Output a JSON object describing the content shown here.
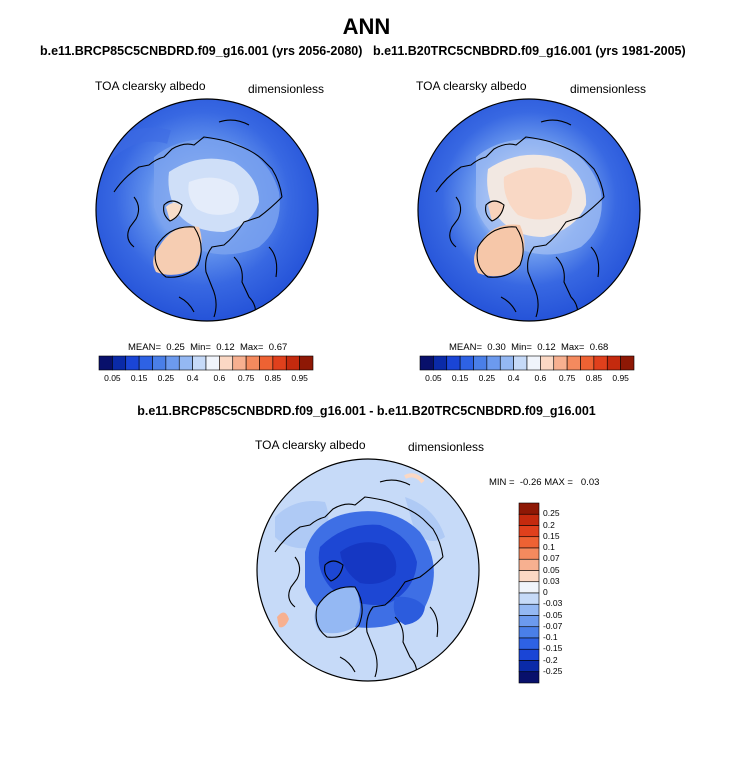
{
  "title": "ANN",
  "panels": [
    {
      "case_title": "b.e11.BRCP85C5CNBDRD.f09_g16.001 (yrs 2056-2080)",
      "variable": "TOA clearsky albedo",
      "units": "dimensionless",
      "stats": {
        "mean_label": "MEAN=",
        "mean": "0.25",
        "min_label": "Min=",
        "min": "0.12",
        "max_label": "Max=",
        "max": "0.67"
      }
    },
    {
      "case_title": "b.e11.B20TRC5CNBDRD.f09_g16.001 (yrs 1981-2005)",
      "variable": "TOA clearsky albedo",
      "units": "dimensionless",
      "stats": {
        "mean_label": "MEAN=",
        "mean": "0.30",
        "min_label": "Min=",
        "min": "0.12",
        "max_label": "Max=",
        "max": "0.68"
      }
    }
  ],
  "diff_panel": {
    "title": "b.e11.BRCP85C5CNBDRD.f09_g16.001 - b.e11.B20TRC5CNBDRD.f09_g16.001",
    "variable": "TOA clearsky albedo",
    "units": "dimensionless",
    "stats": {
      "min_label": "MIN =",
      "min": "-0.26",
      "max_label": "MAX =",
      "max": "0.03"
    }
  },
  "colorbar_main": {
    "labels": [
      "0.05",
      "0.15",
      "0.25",
      "0.4",
      "0.6",
      "0.75",
      "0.85",
      "0.95"
    ],
    "colors": [
      "#08106b",
      "#0a2aa8",
      "#1a45d6",
      "#2e62e4",
      "#4a7fe8",
      "#6c9aee",
      "#94b8f3",
      "#c6daf8",
      "#f0f4fb",
      "#fbd8c4",
      "#f7b090",
      "#f48a5e",
      "#ee6233",
      "#e0401c",
      "#c42a0e",
      "#8e1805"
    ]
  },
  "colorbar_diff": {
    "labels": [
      "0.25",
      "0.2",
      "0.15",
      "0.1",
      "0.07",
      "0.05",
      "0.03",
      "0",
      "-0.03",
      "-0.05",
      "-0.07",
      "-0.1",
      "-0.15",
      "-0.2",
      "-0.25"
    ],
    "colors": [
      "#8e1805",
      "#c42a0e",
      "#e0401c",
      "#ee6233",
      "#f48a5e",
      "#f7b090",
      "#fbd8c4",
      "#f0f4fb",
      "#c6daf8",
      "#94b8f3",
      "#6c9aee",
      "#4a7fe8",
      "#2e62e4",
      "#1a45d6",
      "#0a2aa8",
      "#08106b"
    ]
  }
}
